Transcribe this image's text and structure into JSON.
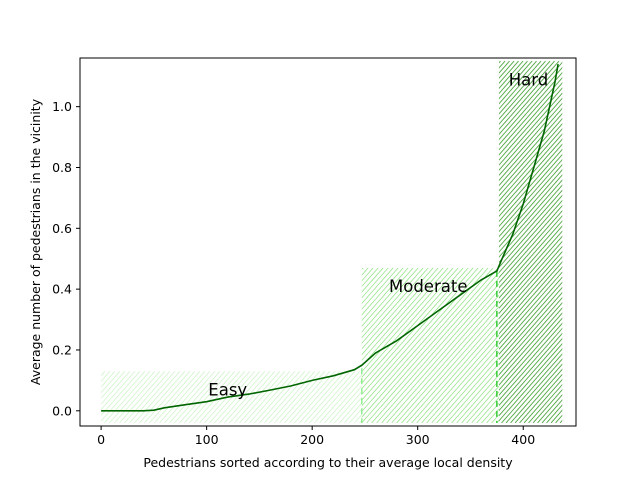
{
  "chart_data": {
    "type": "line",
    "xlabel": "Pedestrians sorted according to their average local density",
    "ylabel": "Average number of pedestrians in the vicinity",
    "xlim": [
      -20,
      450
    ],
    "ylim": [
      -0.05,
      1.16
    ],
    "x_ticks": [
      0,
      100,
      200,
      300,
      400
    ],
    "y_ticks": [
      0.0,
      0.2,
      0.4,
      0.6,
      0.8,
      1.0
    ],
    "y_tick_labels": [
      "0.0",
      "0.2",
      "0.4",
      "0.6",
      "0.8",
      "1.0"
    ],
    "grid": false,
    "regions": [
      {
        "label": "Easy",
        "x_range": [
          0,
          247
        ],
        "y_range": [
          -0.04,
          0.13
        ],
        "color": "#90ee90",
        "hatch_color": "#b8f0b0",
        "label_pos": [
          120,
          0.07
        ]
      },
      {
        "label": "Moderate",
        "x_range": [
          247,
          377
        ],
        "y_range": [
          -0.04,
          0.47
        ],
        "color": "#66dd55",
        "hatch_color": "#7fe070",
        "label_pos": [
          310,
          0.41
        ]
      },
      {
        "label": "Hard",
        "x_range": [
          377,
          437
        ],
        "y_range": [
          -0.04,
          1.15
        ],
        "color": "#3a9a2a",
        "hatch_color": "#3f9f30",
        "label_pos": [
          405,
          1.09
        ]
      }
    ],
    "boundaries": [
      {
        "x": 247,
        "y_top": 0.14,
        "color": "#90ee90"
      },
      {
        "x": 375,
        "y_top": 0.46,
        "color": "#33cc33"
      }
    ],
    "series": [
      {
        "color": "#006400",
        "x": [
          0,
          20,
          40,
          50,
          60,
          80,
          100,
          120,
          140,
          160,
          180,
          200,
          220,
          240,
          247,
          260,
          280,
          300,
          320,
          340,
          360,
          375,
          380,
          390,
          400,
          410,
          420,
          425,
          430,
          433
        ],
        "y": [
          0.0,
          0.0,
          0.0,
          0.002,
          0.01,
          0.02,
          0.03,
          0.045,
          0.055,
          0.068,
          0.082,
          0.1,
          0.115,
          0.135,
          0.15,
          0.19,
          0.23,
          0.28,
          0.33,
          0.38,
          0.43,
          0.46,
          0.5,
          0.58,
          0.68,
          0.8,
          0.92,
          1.0,
          1.08,
          1.14
        ]
      }
    ]
  }
}
